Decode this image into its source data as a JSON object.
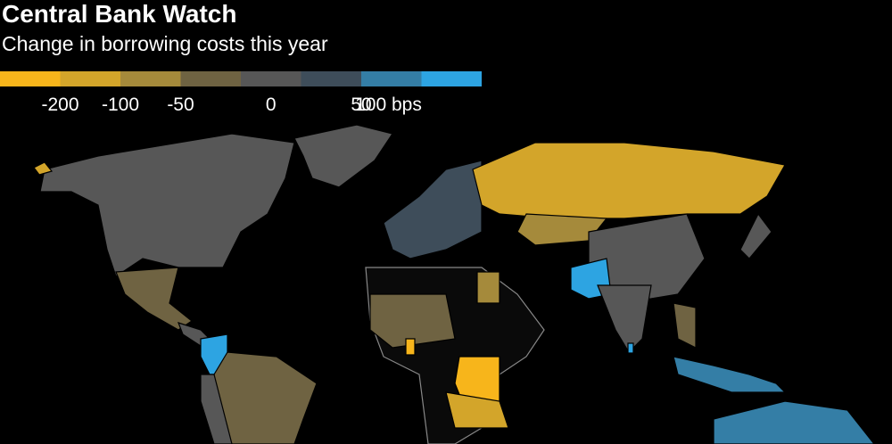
{
  "title": "Central Bank Watch",
  "subtitle": "Change in borrowing costs this year",
  "legend": {
    "colors": [
      "#f7b51b",
      "#d3a52a",
      "#a58a3b",
      "#6f6342",
      "#575757",
      "#3e4d5a",
      "#347ea6",
      "#2da4e2"
    ],
    "labels": [
      "-200",
      "-100",
      "-50",
      "0",
      "50",
      "100 bps"
    ]
  }
}
